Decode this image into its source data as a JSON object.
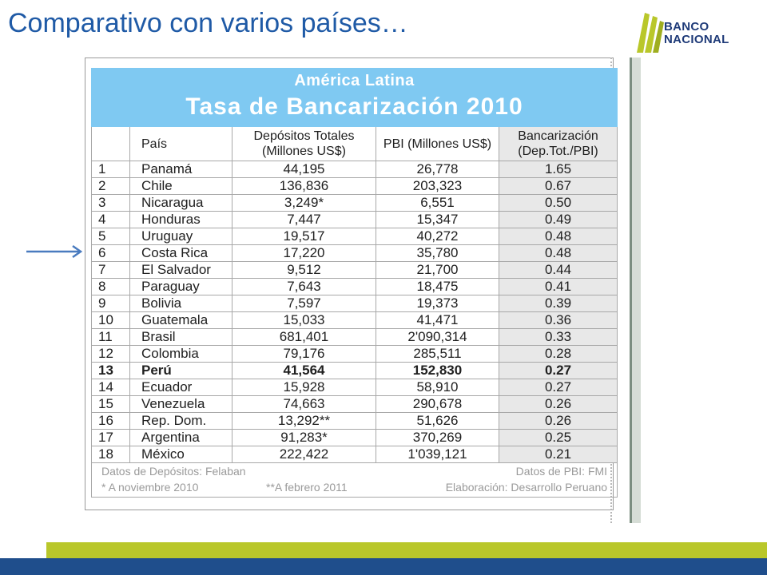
{
  "slide": {
    "title": "Comparativo con varios países…"
  },
  "logo": {
    "line1": "BANCO",
    "line2": "NACIONAL",
    "colors": {
      "green": "#b9c72a",
      "navy": "#1e3a78"
    }
  },
  "table": {
    "region": "América Latina",
    "heading": "Tasa de Bancarización 2010",
    "columns": {
      "pais": "País",
      "depositos": "Depósitos Totales (Millones US$)",
      "pbi": "PBI (Millones US$)",
      "bancarizacion": "Bancarización (Dep.Tot./PBI)"
    },
    "rows": [
      {
        "rank": "1",
        "pais": "Panamá",
        "depositos": "44,195",
        "pbi": "26,778",
        "banc": "1.65"
      },
      {
        "rank": "2",
        "pais": "Chile",
        "depositos": "136,836",
        "pbi": "203,323",
        "banc": "0.67"
      },
      {
        "rank": "3",
        "pais": "Nicaragua",
        "depositos": "3,249*",
        "pbi": "6,551",
        "banc": "0.50"
      },
      {
        "rank": "4",
        "pais": "Honduras",
        "depositos": "7,447",
        "pbi": "15,347",
        "banc": "0.49"
      },
      {
        "rank": "5",
        "pais": "Uruguay",
        "depositos": "19,517",
        "pbi": "40,272",
        "banc": "0.48"
      },
      {
        "rank": "6",
        "pais": "Costa Rica",
        "depositos": "17,220",
        "pbi": "35,780",
        "banc": "0.48"
      },
      {
        "rank": "7",
        "pais": "El Salvador",
        "depositos": "9,512",
        "pbi": "21,700",
        "banc": "0.44"
      },
      {
        "rank": "8",
        "pais": "Paraguay",
        "depositos": "7,643",
        "pbi": "18,475",
        "banc": "0.41"
      },
      {
        "rank": "9",
        "pais": "Bolivia",
        "depositos": "7,597",
        "pbi": "19,373",
        "banc": "0.39"
      },
      {
        "rank": "10",
        "pais": "Guatemala",
        "depositos": "15,033",
        "pbi": "41,471",
        "banc": "0.36"
      },
      {
        "rank": "11",
        "pais": "Brasil",
        "depositos": "681,401",
        "pbi": "2'090,314",
        "banc": "0.33"
      },
      {
        "rank": "12",
        "pais": "Colombia",
        "depositos": "79,176",
        "pbi": "285,511",
        "banc": "0.28"
      },
      {
        "rank": "13",
        "pais": "Perú",
        "depositos": "41,564",
        "pbi": "152,830",
        "banc": "0.27"
      },
      {
        "rank": "14",
        "pais": "Ecuador",
        "depositos": "15,928",
        "pbi": "58,910",
        "banc": "0.27"
      },
      {
        "rank": "15",
        "pais": "Venezuela",
        "depositos": "74,663",
        "pbi": "290,678",
        "banc": "0.26"
      },
      {
        "rank": "16",
        "pais": "Rep. Dom.",
        "depositos": "13,292**",
        "pbi": "51,626",
        "banc": "0.26"
      },
      {
        "rank": "17",
        "pais": "Argentina",
        "depositos": "91,283*",
        "pbi": "370,269",
        "banc": "0.25"
      },
      {
        "rank": "18",
        "pais": "México",
        "depositos": "222,422",
        "pbi": "1'039,121",
        "banc": "0.21"
      }
    ],
    "highlight_rank": "13",
    "notes": {
      "depositos_source": "Datos de Depósitos: Felaban",
      "pbi_source": "Datos de PBI: FMI",
      "footnote_single": "* A noviembre 2010",
      "footnote_double": "**A febrero 2011",
      "elaboracion": "Elaboración: Desarrollo Peruano"
    },
    "colors": {
      "header_bg": "#7fc9f2",
      "ratio_bg": "#e8e8e8"
    }
  },
  "footer": {
    "colors": {
      "green": "#b9c72a",
      "blue": "#1f4e8c"
    }
  },
  "arrow": {
    "icon": "arrow-right-icon",
    "color": "#4a7bbf"
  }
}
